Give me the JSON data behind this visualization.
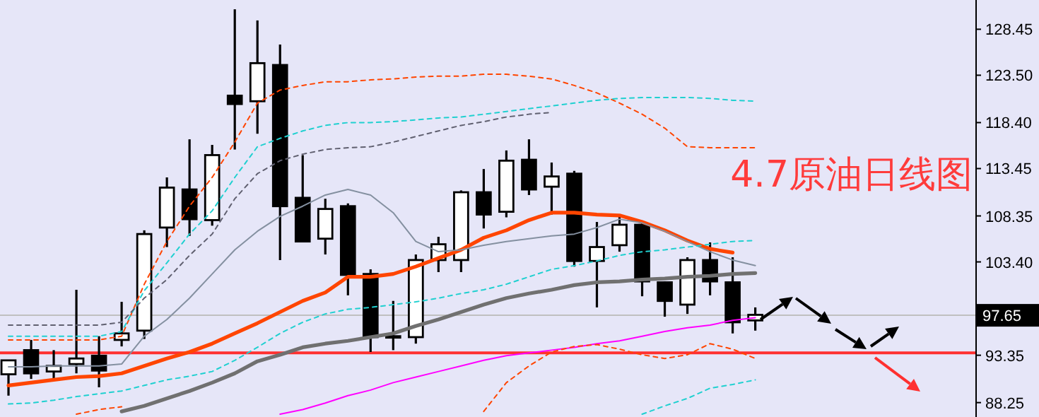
{
  "chart_data": {
    "type": "candlestick",
    "title": "4.7原油日线图",
    "categories": [
      null,
      null,
      null,
      null,
      null,
      null,
      null,
      null,
      null,
      null,
      null,
      null,
      null,
      null,
      null,
      null,
      null,
      null,
      null,
      null,
      null,
      null,
      null,
      null,
      null,
      null,
      null,
      null,
      null,
      null,
      null,
      null,
      null,
      null
    ],
    "ohlc": [
      [
        91.3,
        92.8,
        89.0,
        92.8
      ],
      [
        93.9,
        95.0,
        90.8,
        91.4
      ],
      [
        91.6,
        93.9,
        90.8,
        92.2
      ],
      [
        92.4,
        100.4,
        91.4,
        93.0
      ],
      [
        93.3,
        95.4,
        89.9,
        91.7
      ],
      [
        95.0,
        99.1,
        94.3,
        95.7
      ],
      [
        96.0,
        106.8,
        95.1,
        106.4
      ],
      [
        107.1,
        112.5,
        105.0,
        111.4
      ],
      [
        111.2,
        116.6,
        106.2,
        108.0
      ],
      [
        107.9,
        116.0,
        107.3,
        114.9
      ],
      [
        121.3,
        130.6,
        115.5,
        120.4
      ],
      [
        120.7,
        129.4,
        117.2,
        124.8
      ],
      [
        124.6,
        126.8,
        103.6,
        109.4
      ],
      [
        110.3,
        114.9,
        105.5,
        105.6
      ],
      [
        105.9,
        110.2,
        104.2,
        109.1
      ],
      [
        109.4,
        109.7,
        99.8,
        102.0
      ],
      [
        102.1,
        102.6,
        93.7,
        95.3
      ],
      [
        95.4,
        99.2,
        93.9,
        95.3
      ],
      [
        95.3,
        104.2,
        94.6,
        103.6
      ],
      [
        103.6,
        106.1,
        102.3,
        105.3
      ],
      [
        103.6,
        111.1,
        102.3,
        110.9
      ],
      [
        110.9,
        113.4,
        107.0,
        108.5
      ],
      [
        108.8,
        115.4,
        108.2,
        114.3
      ],
      [
        114.4,
        116.6,
        110.6,
        111.2
      ],
      [
        111.5,
        114.1,
        108.5,
        112.6
      ],
      [
        112.9,
        113.2,
        102.9,
        103.5
      ],
      [
        103.5,
        107.7,
        98.5,
        105.0
      ],
      [
        105.2,
        108.5,
        104.5,
        107.4
      ],
      [
        107.4,
        107.7,
        99.7,
        101.3
      ],
      [
        101.2,
        101.3,
        97.5,
        99.2
      ],
      [
        98.8,
        103.9,
        97.8,
        103.6
      ],
      [
        103.6,
        105.5,
        99.8,
        101.3
      ],
      [
        101.2,
        103.9,
        95.7,
        96.9
      ],
      [
        97.1,
        98.5,
        96.0,
        97.7
      ]
    ],
    "series": [
      {
        "type": "line",
        "color": "#ff4500",
        "values": [
          90.1,
          90.4,
          90.7,
          91.0,
          91.1,
          91.4,
          92.2,
          93.0,
          93.7,
          94.6,
          95.7,
          96.8,
          98.0,
          99.2,
          100.1,
          101.8,
          101.8,
          102.1,
          102.9,
          103.8,
          104.7,
          106.0,
          106.8,
          107.9,
          108.7,
          108.7,
          108.5,
          108.4,
          107.7,
          106.8,
          105.7,
          104.8,
          104.4,
          null
        ]
      },
      {
        "type": "line",
        "color": "#707070",
        "values": [
          null,
          null,
          null,
          null,
          null,
          87.3,
          87.9,
          88.7,
          89.5,
          90.4,
          91.4,
          92.7,
          93.4,
          94.2,
          94.6,
          94.9,
          95.3,
          95.7,
          96.5,
          97.2,
          98.0,
          98.8,
          99.5,
          100.0,
          100.4,
          100.9,
          101.2,
          101.3,
          101.5,
          101.6,
          101.8,
          101.9,
          102.1,
          102.2
        ]
      },
      {
        "type": "line",
        "color": "#8490a0",
        "values": [
          92.1,
          92.1,
          92.2,
          92.2,
          92.2,
          92.4,
          95.4,
          97.2,
          99.5,
          102.1,
          104.7,
          106.7,
          108.3,
          109.4,
          110.6,
          111.2,
          110.6,
          108.7,
          105.6,
          104.5,
          104.7,
          105.2,
          105.6,
          105.9,
          106.2,
          106.4,
          107.1,
          108.0,
          107.6,
          106.7,
          105.6,
          104.5,
          103.6,
          103.0
        ]
      },
      {
        "type": "line",
        "color": "#ff00ff",
        "values": [
          null,
          null,
          null,
          null,
          null,
          null,
          null,
          null,
          null,
          null,
          null,
          null,
          87.0,
          87.5,
          88.2,
          89.0,
          89.6,
          90.4,
          91.0,
          91.6,
          92.2,
          92.8,
          93.3,
          93.6,
          93.9,
          94.2,
          94.6,
          94.9,
          95.4,
          95.9,
          96.3,
          96.6,
          97.1,
          97.4
        ]
      },
      {
        "type": "line",
        "color": "#ff4500",
        "line_style": "dashed",
        "values": [
          95.0,
          95.0,
          95.0,
          95.0,
          95.0,
          95.4,
          101.0,
          105.6,
          109.4,
          112.5,
          116.3,
          120.5,
          121.9,
          122.4,
          122.8,
          122.8,
          123.0,
          123.1,
          123.3,
          123.4,
          123.4,
          123.6,
          123.6,
          123.4,
          123.1,
          122.4,
          121.6,
          120.5,
          119.3,
          117.8,
          115.8,
          115.7,
          115.7,
          115.7
        ]
      },
      {
        "type": "line",
        "color": "#20d0d0",
        "line_style": "dashed",
        "values": [
          95.4,
          95.4,
          95.4,
          95.4,
          95.4,
          95.9,
          100.3,
          103.3,
          106.4,
          108.9,
          112.5,
          115.8,
          116.7,
          117.5,
          118.1,
          118.4,
          118.4,
          118.5,
          118.7,
          118.9,
          119.0,
          119.3,
          119.6,
          119.9,
          120.2,
          120.5,
          120.8,
          121.0,
          121.1,
          121.1,
          121.1,
          121.0,
          120.8,
          120.7
        ]
      },
      {
        "type": "line",
        "color": "#606070",
        "line_style": "dashed",
        "values": [
          96.6,
          96.6,
          96.6,
          96.6,
          96.6,
          96.9,
          99.5,
          101.5,
          104.1,
          106.4,
          110.2,
          112.9,
          114.3,
          115.0,
          115.5,
          115.7,
          115.8,
          116.3,
          116.9,
          117.5,
          118.1,
          118.5,
          119.0,
          119.3,
          119.5,
          null,
          null,
          null,
          null,
          null,
          null,
          null,
          null,
          null
        ]
      },
      {
        "type": "line",
        "color": "#20d0d0",
        "line_style": "dashed",
        "values": [
          88.1,
          88.2,
          88.5,
          88.9,
          89.2,
          89.5,
          90.1,
          90.7,
          91.1,
          91.6,
          92.8,
          94.2,
          95.7,
          96.9,
          97.8,
          98.3,
          98.5,
          98.8,
          99.1,
          99.5,
          100.0,
          100.4,
          101.0,
          101.8,
          102.6,
          103.0,
          103.5,
          104.1,
          104.5,
          104.7,
          105.0,
          105.3,
          105.6,
          105.7
        ]
      },
      {
        "type": "line",
        "color": "#20d0d0",
        "line_style": "dashed",
        "values": [
          null,
          null,
          null,
          null,
          null,
          null,
          null,
          null,
          null,
          null,
          null,
          null,
          null,
          null,
          null,
          null,
          null,
          null,
          null,
          null,
          null,
          null,
          null,
          null,
          null,
          null,
          null,
          null,
          87.0,
          87.9,
          88.7,
          89.8,
          90.2,
          90.7
        ]
      },
      {
        "type": "line",
        "color": "#ff4500",
        "line_style": "dashed",
        "values": [
          null,
          null,
          null,
          87.0,
          87.5,
          87.8,
          null,
          null,
          null,
          null,
          null,
          null,
          null,
          null,
          null,
          null,
          null,
          null,
          null,
          null,
          null,
          87.3,
          90.4,
          92.2,
          93.7,
          94.3,
          94.5,
          94.0,
          93.4,
          93.0,
          93.4,
          94.6,
          94.0,
          93.0
        ]
      }
    ],
    "ref_lines": [
      {
        "axis": "y",
        "value": 97.65,
        "label": "97.65",
        "color": "#c0c0c0"
      },
      {
        "axis": "y",
        "value": 93.6,
        "color": "#ff3030"
      }
    ],
    "ylim": [
      86.7,
      131.6
    ],
    "yticks": [
      128.45,
      {
        "value": 123.5,
        "label": "123.50"
      },
      {
        "value": 118.4,
        "label": "118.40"
      },
      113.45,
      108.35,
      {
        "value": 103.4,
        "label": "103.40"
      },
      93.35,
      88.25
    ],
    "tick_labels": "y"
  }
}
